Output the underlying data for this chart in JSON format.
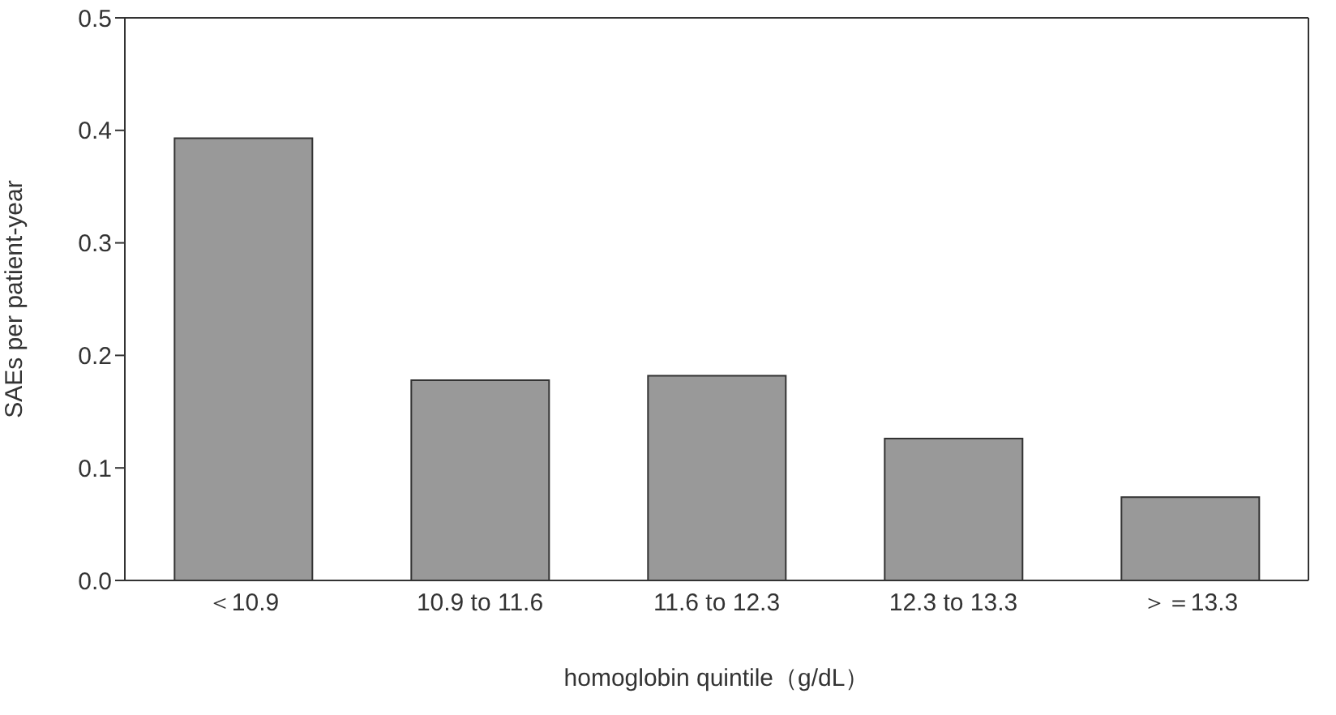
{
  "chart_data": {
    "type": "bar",
    "xlabel": "homoglobin quintile（g/dL）",
    "ylabel": "SAEs per patient-year",
    "categories": [
      "＜10.9",
      "10.9 to 11.6",
      "11.6 to 12.3",
      "12.3 to 13.3",
      "＞＝13.3"
    ],
    "values": [
      0.393,
      0.178,
      0.182,
      0.126,
      0.074
    ],
    "color": "#999999",
    "ylim": [
      0,
      0.5
    ],
    "yticks": [
      {
        "value": 0,
        "label": "0.0"
      },
      {
        "value": 0.1,
        "label": "0.1"
      },
      {
        "value": 0.2,
        "label": "0.2"
      },
      {
        "value": 0.3,
        "label": "0.3"
      },
      {
        "value": 0.4,
        "label": "0.4"
      },
      {
        "value": 0.5,
        "label": "0.5"
      }
    ],
    "grid": false,
    "legend": false
  }
}
